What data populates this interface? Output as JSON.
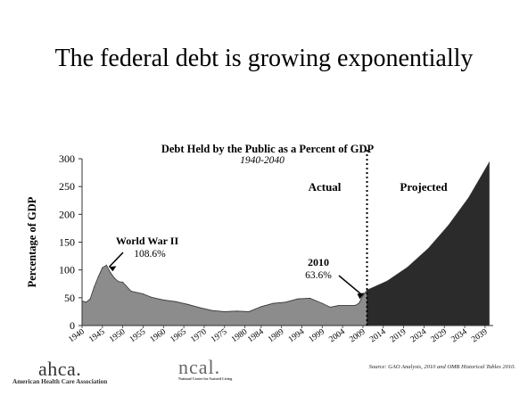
{
  "slide": {
    "title": "The federal debt is growing exponentially"
  },
  "chart_data": {
    "type": "area",
    "title": "Debt Held by the Public as a Percent of GDP",
    "subtitle": "1940-2040",
    "xlabel": "",
    "ylabel": "Percentage of GDP",
    "xlim": [
      1940,
      2041
    ],
    "ylim": [
      0,
      300
    ],
    "yticks": [
      0,
      50,
      100,
      150,
      200,
      250,
      300
    ],
    "xticks": [
      "1940",
      "1945",
      "1950",
      "1955",
      "1960",
      "1965",
      "1970",
      "1975",
      "1980",
      "1984",
      "1989",
      "1994",
      "1999",
      "2004",
      "2009",
      "2014",
      "2019",
      "2024",
      "2029",
      "2034",
      "2039"
    ],
    "grid": false,
    "legend": "none",
    "colors": {
      "actual": "#8c8c8c",
      "projected": "#2b2b2b"
    },
    "divider_x": 2010,
    "series": [
      {
        "name": "Actual",
        "x": [
          1940,
          1941,
          1942,
          1943,
          1944,
          1945,
          1946,
          1947,
          1948,
          1949,
          1950,
          1952,
          1955,
          1957,
          1960,
          1963,
          1966,
          1969,
          1972,
          1975,
          1978,
          1981,
          1984,
          1987,
          1990,
          1993,
          1996,
          1999,
          2001,
          2003,
          2005,
          2007,
          2008,
          2009,
          2010
        ],
        "values": [
          44,
          42,
          48,
          70,
          88,
          104,
          108.6,
          95,
          85,
          79,
          78,
          62,
          57,
          51,
          46,
          43,
          38,
          32,
          27,
          25,
          26,
          25,
          34,
          40,
          42,
          48,
          49,
          40,
          33,
          36,
          36,
          36,
          40,
          54,
          63.6
        ]
      },
      {
        "name": "Projected",
        "x": [
          2010,
          2015,
          2020,
          2025,
          2030,
          2035,
          2040
        ],
        "values": [
          63.6,
          80,
          105,
          138,
          180,
          230,
          293
        ]
      }
    ],
    "annotations": [
      {
        "label": "World War II",
        "value": "108.6%",
        "x": 1946,
        "y": 108.6
      },
      {
        "label": "2010",
        "value": "63.6%",
        "x": 2010,
        "y": 63.6
      }
    ],
    "region_labels": [
      "Actual",
      "Projected"
    ]
  },
  "footer": {
    "ahca_mark": "ahca.",
    "ahca_text": "American Health Care Association",
    "ncal_mark": "ncal.",
    "ncal_text": "National Center for Assisted Living",
    "source": "Source:  GAO Analysis, 2010 and OMB Historical Tables 2010."
  }
}
